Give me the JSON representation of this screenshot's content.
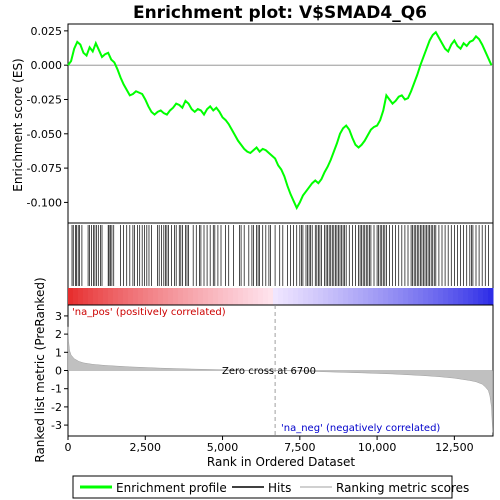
{
  "chart_data": {
    "type": "line",
    "title": "Enrichment plot: V$SMAD4_Q6",
    "top_panel": {
      "ylabel": "Enrichment score (ES)",
      "ylim": [
        -0.115,
        0.03
      ],
      "yticks": [
        0.025,
        0.0,
        -0.025,
        -0.05,
        -0.075,
        -0.1
      ],
      "ytick_labels": [
        "0.025",
        "0.000",
        "-0.025",
        "-0.050",
        "-0.075",
        "-0.100"
      ],
      "series": [
        {
          "name": "Enrichment profile",
          "color": "#00ff00",
          "x": [
            0,
            100,
            200,
            300,
            400,
            500,
            600,
            700,
            800,
            900,
            1000,
            1100,
            1200,
            1300,
            1400,
            1500,
            1600,
            1700,
            1800,
            1900,
            2000,
            2100,
            2200,
            2300,
            2400,
            2500,
            2600,
            2700,
            2800,
            2900,
            3000,
            3100,
            3200,
            3300,
            3400,
            3500,
            3600,
            3700,
            3800,
            3900,
            4000,
            4100,
            4200,
            4300,
            4400,
            4500,
            4600,
            4700,
            4800,
            4900,
            5000,
            5100,
            5200,
            5300,
            5400,
            5500,
            5600,
            5700,
            5800,
            5900,
            6000,
            6100,
            6200,
            6300,
            6400,
            6500,
            6600,
            6700,
            6800,
            6900,
            7000,
            7100,
            7200,
            7300,
            7400,
            7500,
            7600,
            7700,
            7800,
            7900,
            8000,
            8100,
            8200,
            8300,
            8400,
            8500,
            8600,
            8700,
            8800,
            8900,
            9000,
            9100,
            9200,
            9300,
            9400,
            9500,
            9600,
            9700,
            9800,
            9900,
            10000,
            10100,
            10200,
            10300,
            10400,
            10500,
            10600,
            10700,
            10800,
            10900,
            11000,
            11100,
            11200,
            11300,
            11400,
            11500,
            11600,
            11700,
            11800,
            11900,
            12000,
            12100,
            12200,
            12300,
            12400,
            12500,
            12600,
            12700,
            12800,
            12900,
            13000,
            13100,
            13200,
            13300,
            13400,
            13500,
            13600,
            13700
          ],
          "values": [
            0.0,
            0.003,
            0.012,
            0.017,
            0.015,
            0.009,
            0.007,
            0.013,
            0.01,
            0.016,
            0.011,
            0.006,
            0.008,
            0.009,
            0.004,
            0.002,
            -0.003,
            -0.009,
            -0.014,
            -0.018,
            -0.022,
            -0.021,
            -0.019,
            -0.02,
            -0.021,
            -0.025,
            -0.03,
            -0.034,
            -0.036,
            -0.034,
            -0.033,
            -0.035,
            -0.036,
            -0.033,
            -0.031,
            -0.028,
            -0.029,
            -0.031,
            -0.026,
            -0.028,
            -0.032,
            -0.034,
            -0.032,
            -0.033,
            -0.036,
            -0.032,
            -0.03,
            -0.033,
            -0.031,
            -0.034,
            -0.038,
            -0.04,
            -0.043,
            -0.047,
            -0.051,
            -0.055,
            -0.058,
            -0.061,
            -0.063,
            -0.064,
            -0.062,
            -0.06,
            -0.063,
            -0.061,
            -0.062,
            -0.064,
            -0.066,
            -0.068,
            -0.073,
            -0.076,
            -0.081,
            -0.088,
            -0.094,
            -0.099,
            -0.104,
            -0.1,
            -0.095,
            -0.092,
            -0.089,
            -0.086,
            -0.084,
            -0.086,
            -0.083,
            -0.078,
            -0.074,
            -0.069,
            -0.063,
            -0.057,
            -0.05,
            -0.046,
            -0.044,
            -0.047,
            -0.053,
            -0.058,
            -0.06,
            -0.058,
            -0.055,
            -0.051,
            -0.047,
            -0.045,
            -0.044,
            -0.04,
            -0.033,
            -0.022,
            -0.025,
            -0.028,
            -0.026,
            -0.023,
            -0.022,
            -0.025,
            -0.024,
            -0.019,
            -0.013,
            -0.007,
            0.0,
            0.006,
            0.012,
            0.018,
            0.022,
            0.024,
            0.02,
            0.016,
            0.012,
            0.01,
            0.015,
            0.018,
            0.014,
            0.012,
            0.016,
            0.014,
            0.017,
            0.018,
            0.021,
            0.019,
            0.015,
            0.01,
            0.005,
            0.0
          ]
        }
      ]
    },
    "hits_panel": {
      "legend_label": "Hits",
      "hit_positions": [
        130,
        170,
        240,
        280,
        330,
        370,
        450,
        650,
        700,
        760,
        820,
        870,
        920,
        980,
        1050,
        1100,
        1300,
        1330,
        1380,
        1420,
        1480,
        1700,
        1800,
        1900,
        2000,
        2100,
        2150,
        2250,
        2320,
        2400,
        2480,
        2550,
        2620,
        2700,
        2900,
        2950,
        3020,
        3100,
        3150,
        3200,
        3250,
        3350,
        3450,
        3500,
        3600,
        3650,
        3700,
        3800,
        3850,
        3900,
        4050,
        4150,
        4250,
        4300,
        4400,
        4500,
        4600,
        4700,
        4750,
        4850,
        4950,
        5100,
        5200,
        5350,
        5550,
        5600,
        5700,
        5850,
        5950,
        6000,
        6100,
        6150,
        6200,
        6300,
        6400,
        6500,
        6550,
        6700,
        6850,
        6950,
        7100,
        7200,
        7300,
        7400,
        7500,
        7550,
        7600,
        7700,
        7750,
        7800,
        7850,
        7900,
        8000,
        8050,
        8100,
        8150,
        8200,
        8300,
        8350,
        8400,
        8450,
        8500,
        8550,
        8600,
        8650,
        8700,
        8750,
        8800,
        8850,
        8900,
        8950,
        9000,
        9100,
        9200,
        9300,
        9400,
        9450,
        9500,
        9550,
        9600,
        9650,
        9700,
        9750,
        9800,
        9900,
        10000,
        10050,
        10100,
        10150,
        10200,
        10250,
        10300,
        10400,
        10500,
        10600,
        10700,
        10800,
        10900,
        11000,
        11100,
        11150,
        11200,
        11250,
        11300,
        11350,
        11400,
        11450,
        11500,
        11550,
        11600,
        11650,
        11700,
        11750,
        11800,
        11850,
        11900,
        12000,
        12100,
        12200,
        12300,
        12400,
        12500,
        12600,
        12700,
        12800,
        12900,
        13000,
        13050,
        13100,
        13200,
        13300,
        13400,
        13500,
        13600
      ]
    },
    "metric_panel": {
      "ylabel": "Ranked list metric (PreRanked)",
      "ylim": [
        -3.6,
        3.6
      ],
      "yticks": [
        3,
        2,
        1,
        0,
        -1,
        -2,
        -3
      ],
      "ytick_labels": [
        "3",
        "2",
        "1",
        "0",
        "-1",
        "-2",
        "-3"
      ],
      "profile_x": [
        0,
        20,
        50,
        100,
        200,
        350,
        500,
        800,
        1200,
        2000,
        3000,
        4000,
        5000,
        6000,
        6700,
        7500,
        8500,
        9500,
        10500,
        11500,
        12000,
        12500,
        13000,
        13200,
        13400,
        13500,
        13600,
        13650,
        13700,
        13740
      ],
      "profile_y": [
        2.4,
        1.6,
        1.1,
        0.85,
        0.65,
        0.5,
        0.42,
        0.34,
        0.28,
        0.2,
        0.13,
        0.08,
        0.04,
        0.01,
        0.0,
        -0.03,
        -0.08,
        -0.13,
        -0.19,
        -0.28,
        -0.34,
        -0.42,
        -0.55,
        -0.62,
        -0.75,
        -0.9,
        -1.1,
        -1.4,
        -2.0,
        -3.4
      ],
      "pos_label": "'na_pos' (positively correlated)",
      "neg_label": "'na_neg' (negatively correlated)",
      "zero_cross_label": "Zero cross at 6700",
      "zero_cross": 6700,
      "pos_color": "#cc0000",
      "neg_color": "#0000cc",
      "fill_color": "#c0c0c0"
    },
    "x_axis": {
      "label": "Rank in Ordered Dataset",
      "range": [
        0,
        13750
      ],
      "ticks": [
        0,
        2500,
        5000,
        7500,
        10000,
        12500
      ],
      "tick_labels": [
        "0",
        "2,500",
        "5,000",
        "7,500",
        "10,000",
        "12,500"
      ]
    },
    "legend": {
      "items": [
        {
          "label": "Enrichment profile",
          "color": "#00ff00",
          "kind": "line"
        },
        {
          "label": "Hits",
          "color": "#000000",
          "kind": "line"
        },
        {
          "label": "Ranking metric scores",
          "color": "#c0c0c0",
          "kind": "line"
        }
      ],
      "placement": "bottom"
    }
  }
}
